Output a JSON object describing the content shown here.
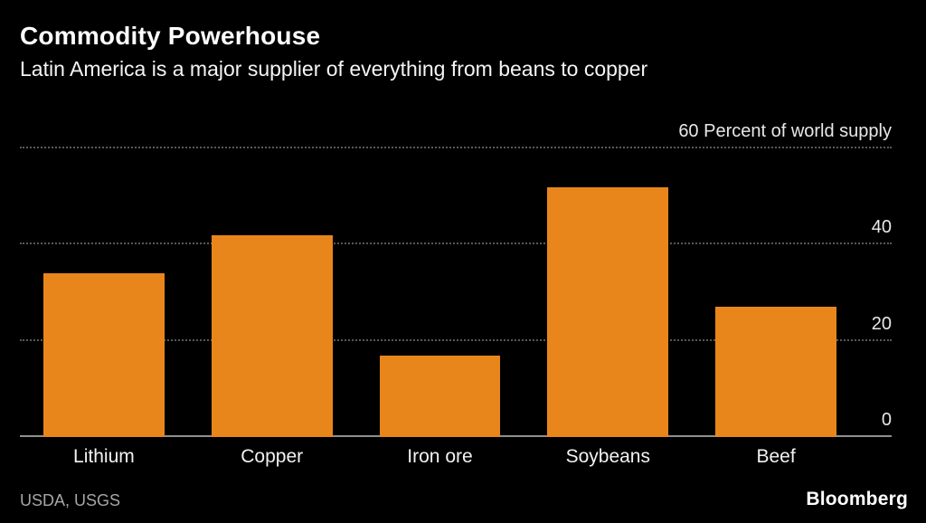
{
  "header": {
    "title": "Commodity Powerhouse",
    "subtitle": "Latin America is a major supplier of everything from beans to copper"
  },
  "chart_data": {
    "type": "bar",
    "title": "Commodity Powerhouse",
    "subtitle": "Latin America is a major supplier of everything from beans to copper",
    "categories": [
      "Lithium",
      "Copper",
      "Iron ore",
      "Soybeans",
      "Beef"
    ],
    "values": [
      34,
      42,
      17,
      52,
      27
    ],
    "ylabel": "Percent of world supply",
    "ylim": [
      0,
      60
    ],
    "yticks": [
      0,
      20,
      40,
      60
    ],
    "ytick_labels": [
      "0",
      "20",
      "40",
      "60 Percent of world supply"
    ],
    "bar_color": "#E8861C",
    "grid": "horizontal-dotted",
    "legend": "none",
    "background": "#000000"
  },
  "footer": {
    "source": "USDA, USGS",
    "brand": "Bloomberg"
  }
}
